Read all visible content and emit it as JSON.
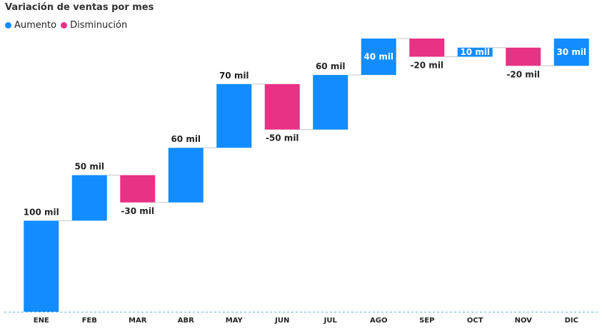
{
  "chart_data": {
    "type": "waterfall",
    "title": "Variación de ventas por mes",
    "legend": {
      "placement": "top-left",
      "entries": [
        {
          "name": "Aumento",
          "color": "#118DFF"
        },
        {
          "name": "Disminución",
          "color": "#E83285"
        }
      ]
    },
    "categories": [
      "ENE",
      "FEB",
      "MAR",
      "ABR",
      "MAY",
      "JUN",
      "JUL",
      "AGO",
      "SEP",
      "OCT",
      "NOV",
      "DIC"
    ],
    "values": [
      100,
      50,
      -30,
      60,
      70,
      -50,
      60,
      40,
      -20,
      10,
      -20,
      30
    ],
    "data_labels": [
      "100 mil",
      "50 mil",
      "-30 mil",
      "60 mil",
      "70 mil",
      "-50 mil",
      "60 mil",
      "40 mil",
      "-20 mil",
      "10 mil",
      "-20 mil",
      "30 mil"
    ],
    "unit": "mil",
    "ylim": [
      0,
      300
    ],
    "colors": {
      "increase": "#118DFF",
      "decrease": "#E83285",
      "baseline": "#5FB7DA",
      "connector": "#C8C6C4"
    }
  }
}
